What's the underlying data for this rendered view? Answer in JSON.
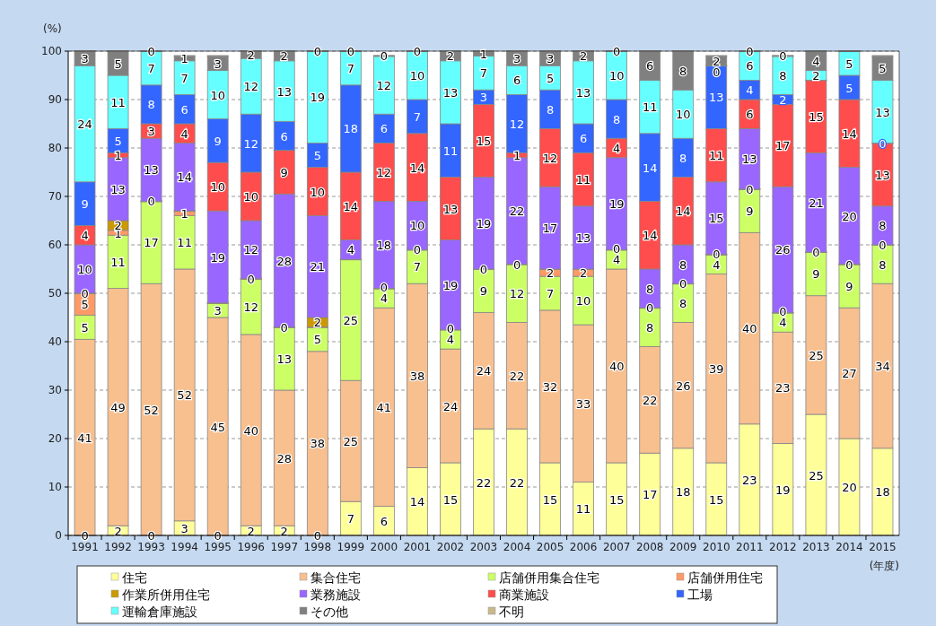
{
  "chart_data": {
    "type": "bar",
    "stacked": true,
    "grid": "y",
    "legend": "bottom",
    "ylabel": "(%)",
    "xlabel": "(年度)",
    "ylim": [
      0,
      100
    ],
    "yticks": [
      0,
      10,
      20,
      30,
      40,
      50,
      60,
      70,
      80,
      90,
      100
    ],
    "categories": [
      "1991",
      "1992",
      "1993",
      "1994",
      "1995",
      "1996",
      "1997",
      "1998",
      "1999",
      "2000",
      "2001",
      "2002",
      "2003",
      "2004",
      "2005",
      "2006",
      "2007",
      "2008",
      "2009",
      "2010",
      "2011",
      "2012",
      "2013",
      "2014",
      "2015"
    ],
    "series": [
      {
        "name": "住宅",
        "color": "#ffff99",
        "values": [
          0,
          2,
          0,
          3,
          0,
          2,
          2,
          0,
          7,
          6,
          14,
          15,
          22,
          22,
          15,
          11,
          15,
          17,
          18,
          15,
          23,
          19,
          25,
          20,
          18
        ],
        "value_labels": [
          "0",
          "2",
          "0",
          "3",
          "0",
          "2",
          "2",
          "0",
          "7",
          "6",
          "14",
          "15",
          "22",
          "22",
          "15",
          "11",
          "15",
          "17",
          "18",
          "15",
          "23",
          "19",
          "25",
          "20",
          "18"
        ]
      },
      {
        "name": "集合住宅",
        "color": "#f8bf8f",
        "values": [
          40.5,
          49,
          52,
          52,
          45,
          39.5,
          28,
          38,
          25,
          41,
          38,
          23.5,
          24,
          22,
          31.5,
          32.5,
          40,
          22,
          26,
          39,
          39.5,
          23,
          24.5,
          27,
          34
        ],
        "value_labels": [
          "41",
          "49",
          "52",
          "52",
          "45",
          "40",
          "28",
          "38",
          "25",
          "41",
          "38",
          "24",
          "24",
          "22",
          "32",
          "33",
          "40",
          "22",
          "26",
          "39",
          "40",
          "23",
          "25",
          "27",
          "34"
        ]
      },
      {
        "name": "店舗併用集合住宅",
        "color": "#ccff66",
        "values": [
          5,
          11,
          17,
          11,
          3,
          11.5,
          13,
          5,
          25,
          4,
          7,
          4,
          9,
          12,
          7,
          10,
          4,
          8,
          8,
          4,
          9,
          4,
          9,
          9,
          8
        ],
        "value_labels": [
          "5",
          "11",
          "17",
          "11",
          "3",
          "12",
          "13",
          "5",
          "25",
          "4",
          "7",
          "4",
          "9",
          "12",
          "7",
          "10",
          "4",
          "8",
          "8",
          "4",
          "9",
          "4",
          "9",
          "9",
          "8"
        ]
      },
      {
        "name": "店舗併用住宅",
        "color": "#ff9966",
        "values": [
          4.5,
          1,
          0,
          1,
          0,
          0,
          0,
          0,
          0,
          0,
          0,
          0,
          0,
          0,
          1.5,
          1.5,
          0,
          0,
          0,
          0,
          0,
          0,
          0,
          0,
          0
        ],
        "value_labels": [
          "5",
          "1",
          "0",
          "1",
          null,
          "0",
          "0",
          null,
          null,
          "0",
          "0",
          "0",
          "0",
          "0",
          "2",
          "2",
          "0",
          "0",
          "0",
          "0",
          "0",
          "0",
          "0",
          "0",
          "0"
        ]
      },
      {
        "name": "作業所併用住宅",
        "color": "#cc9900",
        "values": [
          0,
          2,
          0,
          0,
          0,
          0,
          0,
          2,
          0,
          0,
          0,
          0,
          0,
          0,
          0,
          0,
          0,
          0,
          0,
          0,
          0,
          0,
          0,
          0,
          0
        ],
        "value_labels": [
          "0",
          "2",
          null,
          null,
          null,
          null,
          null,
          "2",
          null,
          null,
          null,
          null,
          null,
          null,
          null,
          null,
          null,
          null,
          null,
          null,
          null,
          null,
          null,
          null,
          null
        ]
      },
      {
        "name": "業務施設",
        "color": "#9966ff",
        "values": [
          10,
          13,
          13,
          14,
          19,
          12,
          27.5,
          21,
          4,
          18,
          10,
          18.5,
          19,
          22,
          17,
          13,
          19,
          8,
          8,
          15,
          12.5,
          26,
          20.5,
          20,
          8
        ],
        "value_labels": [
          "10",
          "13",
          "13",
          "14",
          "19",
          "12",
          "28",
          "21",
          "4",
          "18",
          "10",
          "19",
          "19",
          "22",
          "17",
          "13",
          "19",
          "8",
          "8",
          "15",
          "13",
          "26",
          "21",
          "20",
          "8"
        ]
      },
      {
        "name": "商業施設",
        "color": "#ff4d4d",
        "values": [
          4,
          1,
          3,
          4,
          10,
          10,
          9,
          10,
          14,
          12,
          14,
          13,
          15,
          1,
          12,
          11,
          4,
          14,
          14,
          11,
          6,
          17,
          15,
          14,
          13
        ],
        "value_labels": [
          "4",
          "1",
          "3",
          "4",
          "10",
          "10",
          "9",
          "10",
          "14",
          "12",
          "14",
          "13",
          "15",
          "1",
          "12",
          "11",
          "4",
          "14",
          "14",
          "11",
          "6",
          "17",
          "15",
          "14",
          "13"
        ]
      },
      {
        "name": "工場",
        "color": "#3366ff",
        "values": [
          9,
          5,
          8,
          6,
          9,
          12,
          6,
          5,
          18,
          6,
          7,
          11,
          3,
          12,
          8,
          6,
          8,
          14,
          8,
          13,
          4,
          2,
          0,
          5,
          0
        ],
        "value_labels": [
          "9",
          "5",
          "8",
          "6",
          "9",
          "12",
          "6",
          "5",
          "18",
          "6",
          "7",
          "11",
          "3",
          "12",
          "8",
          "6",
          "8",
          "14",
          "8",
          "13",
          "4",
          "2",
          null,
          "5",
          "0"
        ]
      },
      {
        "name": "運輸倉庫施設",
        "color": "#66ffff",
        "values": [
          24,
          11,
          7,
          7,
          10,
          11.5,
          12.5,
          19,
          7,
          12,
          10,
          13,
          7,
          6,
          5,
          13,
          10,
          11,
          10,
          0,
          6,
          8,
          2,
          5,
          13
        ],
        "value_labels": [
          "24",
          "11",
          "7",
          "7",
          "10",
          "12",
          "13",
          "19",
          "7",
          "12",
          "10",
          "13",
          "7",
          "6",
          "5",
          "13",
          "10",
          "11",
          "10",
          "0",
          "6",
          "8",
          "2",
          "5",
          "13"
        ]
      },
      {
        "name": "その他",
        "color": "#808080",
        "values": [
          3,
          5,
          0,
          1,
          3,
          1.5,
          2,
          0,
          0,
          0,
          0,
          2,
          1,
          3,
          3,
          2,
          0,
          6,
          8,
          2,
          0,
          0,
          4,
          0,
          5
        ],
        "value_labels": [
          "3",
          "5",
          "0",
          "1",
          "3",
          "2",
          "2",
          "0",
          "0",
          "0",
          "0",
          "2",
          "1",
          "3",
          "3",
          "2",
          "0",
          "6",
          "8",
          "2",
          "0",
          null,
          "4",
          null,
          "5"
        ]
      },
      {
        "name": "不明",
        "color": "#c8b98c",
        "values": [
          0,
          0,
          0,
          0,
          0,
          0,
          0,
          0,
          0,
          0,
          0,
          0,
          0,
          0,
          0,
          0,
          0,
          0,
          0,
          0,
          0,
          0,
          0,
          0,
          0
        ],
        "value_labels": [
          null,
          null,
          null,
          null,
          null,
          null,
          null,
          null,
          null,
          null,
          null,
          null,
          null,
          null,
          null,
          null,
          null,
          null,
          null,
          null,
          null,
          "0",
          null,
          null,
          null
        ]
      }
    ]
  }
}
